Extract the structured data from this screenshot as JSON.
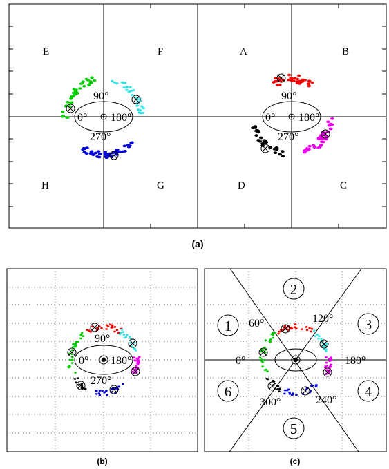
{
  "panels": {
    "a": {
      "caption": "(a)",
      "quadrants": [
        "E",
        "F",
        "A",
        "B",
        "H",
        "G",
        "D",
        "C"
      ],
      "angles": [
        "90°",
        "0°",
        "180°",
        "270°"
      ],
      "clusters": [
        {
          "name": "top-left",
          "color": "#00cc00"
        },
        {
          "name": "top-right",
          "color": "#33e5e5"
        },
        {
          "name": "bottom",
          "color": "#0000dd"
        },
        {
          "name": "red",
          "color": "#ee0000"
        },
        {
          "name": "magenta",
          "color": "#ee00ee"
        },
        {
          "name": "black",
          "color": "#000000"
        }
      ]
    },
    "b": {
      "caption": "(b)",
      "angles": [
        "90°",
        "0°",
        "180°",
        "270°"
      ]
    },
    "c": {
      "caption": "(c)",
      "sectors": [
        "1",
        "2",
        "3",
        "4",
        "5",
        "6"
      ],
      "angles": [
        "60°",
        "120°",
        "0°",
        "180°",
        "300°",
        "240°"
      ]
    }
  }
}
